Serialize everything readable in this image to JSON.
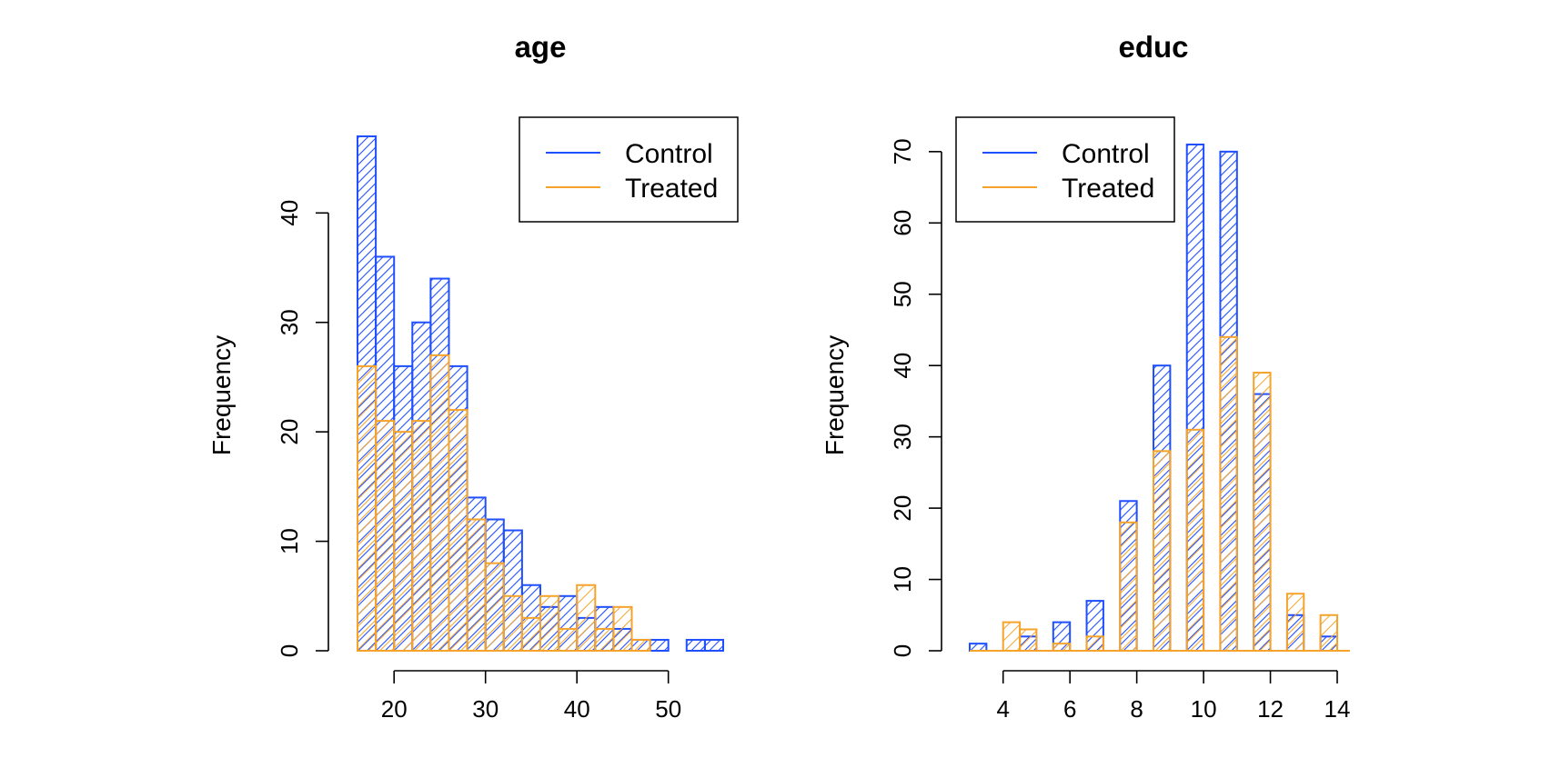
{
  "colors": {
    "control": "#1F4FFF",
    "treated": "#F5A32A"
  },
  "legend": {
    "control": "Control",
    "treated": "Treated"
  },
  "chart_data": [
    {
      "type": "histogram",
      "title": "age",
      "ylabel": "Frequency",
      "xlim": [
        16,
        56
      ],
      "ylim": [
        0,
        47
      ],
      "x_ticks": [
        20,
        30,
        40,
        50
      ],
      "y_ticks": [
        0,
        10,
        20,
        30,
        40
      ],
      "legend_position": "top-right",
      "series": [
        {
          "name": "Control",
          "bin_edges": [
            16,
            18,
            20,
            22,
            24,
            26,
            28,
            30,
            32,
            34,
            36,
            38,
            40,
            42,
            44,
            46,
            48,
            50,
            52,
            54,
            56
          ],
          "counts": [
            47,
            36,
            26,
            30,
            34,
            26,
            14,
            12,
            11,
            6,
            4,
            5,
            3,
            4,
            2,
            1,
            1,
            0,
            1,
            1
          ]
        },
        {
          "name": "Treated",
          "bin_edges": [
            16,
            18,
            20,
            22,
            24,
            26,
            28,
            30,
            32,
            34,
            36,
            38,
            40,
            42,
            44,
            46,
            48
          ],
          "counts": [
            26,
            21,
            20,
            21,
            27,
            22,
            12,
            8,
            5,
            3,
            5,
            2,
            6,
            2,
            4,
            1
          ]
        }
      ]
    },
    {
      "type": "histogram",
      "title": "educ",
      "ylabel": "Frequency",
      "xlim": [
        3,
        14
      ],
      "ylim": [
        0,
        71
      ],
      "x_ticks": [
        4,
        6,
        8,
        10,
        12,
        14
      ],
      "y_ticks": [
        0,
        10,
        20,
        30,
        40,
        50,
        60,
        70
      ],
      "legend_position": "top-left",
      "series": [
        {
          "name": "Control",
          "bin_edges": [
            3,
            3.5,
            4,
            4.5,
            5,
            5.5,
            6,
            6.5,
            7,
            7.5,
            8,
            8.5,
            9,
            9.5,
            10,
            10.5,
            11,
            11.5,
            12,
            12.5,
            13,
            13.5,
            14
          ],
          "counts": [
            1,
            0,
            0,
            2,
            0,
            4,
            0,
            7,
            0,
            21,
            0,
            40,
            0,
            71,
            0,
            70,
            0,
            36,
            0,
            5,
            0,
            2
          ]
        },
        {
          "name": "Treated",
          "bin_edges": [
            4,
            4.5,
            5,
            5.5,
            6,
            6.5,
            7,
            7.5,
            8,
            8.5,
            9,
            9.5,
            10,
            10.5,
            11,
            11.5,
            12,
            12.5,
            13,
            13.5,
            14
          ],
          "counts": [
            4,
            3,
            0,
            1,
            0,
            2,
            0,
            18,
            0,
            28,
            0,
            31,
            0,
            44,
            0,
            39,
            0,
            8,
            0,
            5
          ]
        }
      ]
    }
  ]
}
